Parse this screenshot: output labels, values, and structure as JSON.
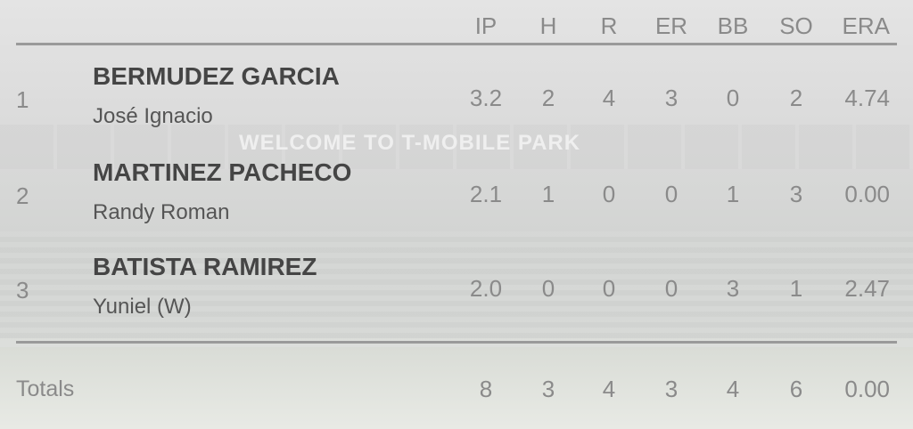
{
  "background": {
    "sign": "WELCOME TO T-MOBILE PARK"
  },
  "columns": [
    "IP",
    "H",
    "R",
    "ER",
    "BB",
    "SO",
    "ERA"
  ],
  "rows": [
    {
      "rank": "1",
      "last": "BERMUDEZ GARCIA",
      "first": "José Ignacio",
      "stats": [
        "3.2",
        "2",
        "4",
        "3",
        "0",
        "2",
        "4.74"
      ]
    },
    {
      "rank": "2",
      "last": "MARTINEZ PACHECO",
      "first": "Randy Roman",
      "stats": [
        "2.1",
        "1",
        "0",
        "0",
        "1",
        "3",
        "0.00"
      ]
    },
    {
      "rank": "3",
      "last": "BATISTA RAMIREZ",
      "first": "Yuniel (W)",
      "stats": [
        "2.0",
        "0",
        "0",
        "0",
        "3",
        "1",
        "2.47"
      ]
    }
  ],
  "totals": {
    "label": "Totals",
    "stats": [
      "8",
      "3",
      "4",
      "3",
      "4",
      "6",
      "0.00"
    ]
  }
}
